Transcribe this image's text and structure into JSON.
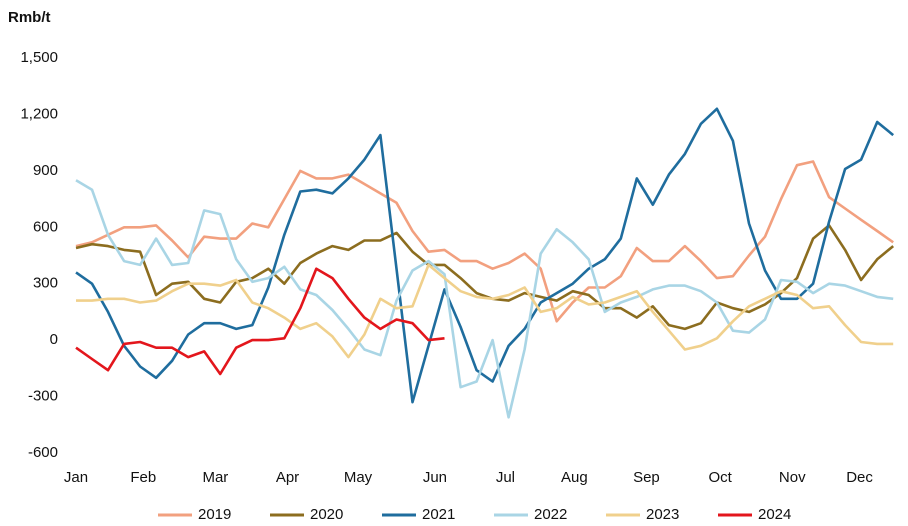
{
  "chart_data": {
    "type": "line",
    "y_label": "Rmb/t",
    "x": [
      0,
      1,
      2,
      3,
      4,
      5,
      6,
      7,
      8,
      9,
      10,
      11,
      12,
      13,
      14,
      15,
      16,
      17,
      18,
      19,
      20,
      21,
      22,
      23,
      24,
      25,
      26,
      27,
      28,
      29,
      30,
      31,
      32,
      33,
      34,
      35,
      36,
      37,
      38,
      39,
      40,
      41,
      42,
      43,
      44,
      45,
      46,
      47,
      48,
      49,
      50,
      51
    ],
    "xlim": [
      0,
      51.8
    ],
    "xticks": [
      {
        "value": 0,
        "label": "Jan"
      },
      {
        "value": 4.2,
        "label": "Feb"
      },
      {
        "value": 8.7,
        "label": "Mar"
      },
      {
        "value": 13.2,
        "label": "Apr"
      },
      {
        "value": 17.6,
        "label": "May"
      },
      {
        "value": 22.4,
        "label": "Jun"
      },
      {
        "value": 26.8,
        "label": "Jul"
      },
      {
        "value": 31.1,
        "label": "Aug"
      },
      {
        "value": 35.6,
        "label": "Sep"
      },
      {
        "value": 40.2,
        "label": "Oct"
      },
      {
        "value": 44.7,
        "label": "Nov"
      },
      {
        "value": 48.9,
        "label": "Dec"
      }
    ],
    "ylim": [
      -600,
      1500
    ],
    "yticks": [
      -600,
      -300,
      0,
      300,
      600,
      900,
      {
        "value": 1200,
        "label": "1,200"
      },
      {
        "value": 1500,
        "label": "1,500"
      }
    ],
    "grid": false,
    "legend": "bottom",
    "series": [
      {
        "name": "2019",
        "color": "#f2a07f",
        "values": [
          500,
          520,
          560,
          600,
          600,
          610,
          530,
          440,
          550,
          540,
          540,
          620,
          600,
          750,
          900,
          860,
          860,
          880,
          830,
          780,
          730,
          580,
          470,
          480,
          420,
          420,
          380,
          410,
          460,
          380,
          100,
          200,
          280,
          280,
          340,
          490,
          420,
          420,
          500,
          420,
          330,
          340,
          450,
          550,
          750,
          930,
          950,
          760,
          700,
          640,
          580,
          520
        ]
      },
      {
        "name": "2020",
        "color": "#8c6d1f",
        "values": [
          490,
          510,
          500,
          480,
          470,
          240,
          300,
          310,
          220,
          200,
          310,
          330,
          380,
          300,
          410,
          460,
          500,
          480,
          530,
          530,
          570,
          470,
          400,
          400,
          330,
          250,
          220,
          210,
          250,
          230,
          210,
          260,
          240,
          170,
          170,
          120,
          180,
          80,
          60,
          90,
          200,
          170,
          150,
          190,
          250,
          330,
          540,
          610,
          480,
          320,
          430,
          500
        ]
      },
      {
        "name": "2021",
        "color": "#1f6d9e",
        "values": [
          360,
          300,
          150,
          -30,
          -140,
          -200,
          -110,
          30,
          90,
          90,
          60,
          80,
          280,
          560,
          790,
          800,
          780,
          860,
          960,
          1090,
          380,
          -330,
          -30,
          270,
          70,
          -160,
          -220,
          -30,
          60,
          200,
          250,
          300,
          380,
          430,
          540,
          860,
          720,
          880,
          990,
          1150,
          1230,
          1060,
          620,
          370,
          220,
          220,
          300,
          630,
          910,
          960,
          1160,
          1090
        ]
      },
      {
        "name": "2022",
        "color": "#a9d5e5",
        "values": [
          850,
          800,
          560,
          420,
          400,
          540,
          400,
          410,
          690,
          670,
          430,
          310,
          330,
          390,
          270,
          240,
          160,
          60,
          -50,
          -80,
          210,
          370,
          420,
          350,
          -250,
          -220,
          0,
          -410,
          -50,
          460,
          590,
          520,
          430,
          150,
          200,
          230,
          270,
          290,
          290,
          260,
          200,
          50,
          40,
          110,
          320,
          310,
          250,
          300,
          290,
          260,
          230,
          220
        ]
      },
      {
        "name": "2023",
        "color": "#f0d08c",
        "values": [
          210,
          210,
          220,
          220,
          200,
          210,
          260,
          300,
          300,
          290,
          320,
          200,
          170,
          120,
          60,
          90,
          20,
          -90,
          30,
          220,
          170,
          180,
          400,
          330,
          260,
          230,
          220,
          240,
          280,
          150,
          170,
          230,
          190,
          200,
          230,
          260,
          150,
          50,
          -50,
          -30,
          10,
          100,
          180,
          220,
          260,
          240,
          170,
          180,
          80,
          -10,
          -20,
          -20
        ]
      },
      {
        "name": "2024",
        "color": "#e3161c",
        "values": [
          -40,
          -100,
          -160,
          -20,
          -10,
          -40,
          -40,
          -90,
          -60,
          -180,
          -40,
          0,
          0,
          10,
          170,
          380,
          330,
          220,
          120,
          60,
          110,
          90,
          0,
          10,
          null,
          null,
          null,
          null,
          null,
          null,
          null,
          null,
          null,
          null,
          null,
          null,
          null,
          null,
          null,
          null,
          null,
          null,
          null,
          null,
          null,
          null,
          null,
          null,
          null,
          null,
          null,
          null
        ]
      }
    ]
  }
}
